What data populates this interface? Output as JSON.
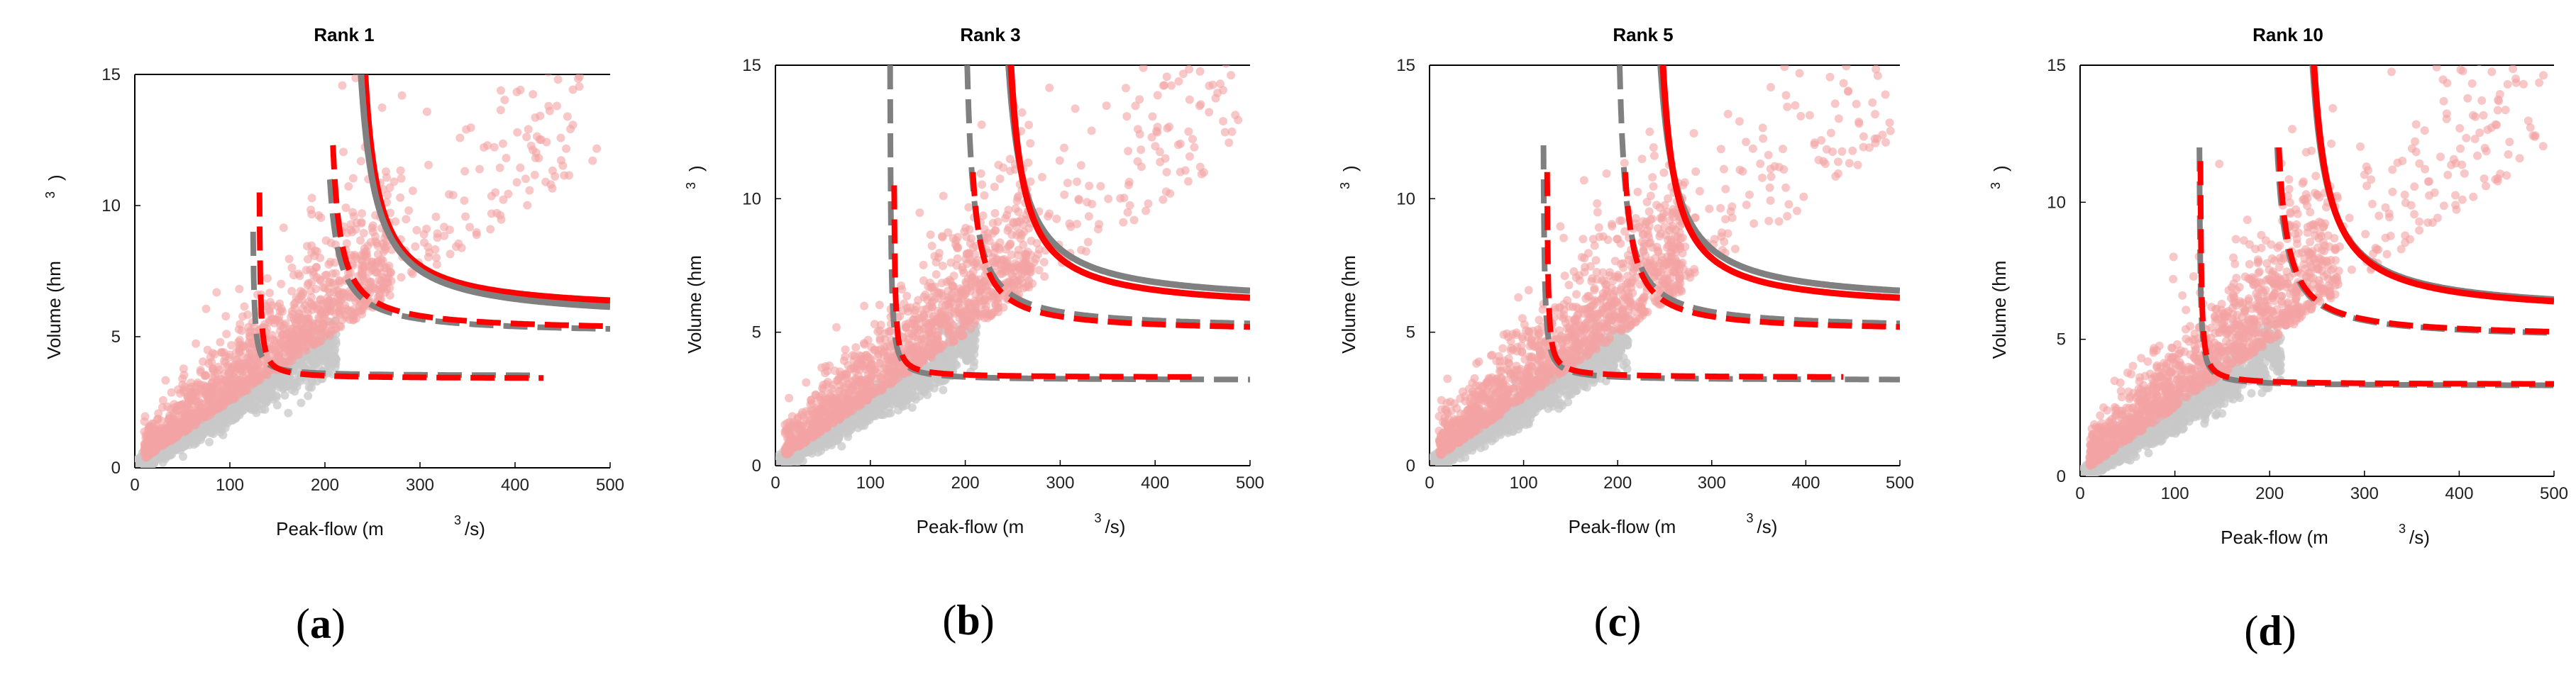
{
  "figure": {
    "x_label_pre": "Peak-flow (m",
    "x_label_sup": "3",
    "x_label_post": "/s)",
    "y_label_pre": "Volume (hm",
    "y_label_sup": "3",
    "y_label_post": ")"
  },
  "colors": {
    "scatter_pink": "#f4a3a3",
    "scatter_grey": "#c8c8c8",
    "curve_red": "#ff0000",
    "curve_grey": "#808080"
  },
  "chart_data": [
    {
      "id": "a",
      "type": "scatter",
      "title": "Rank 1",
      "panel_label": "a",
      "xlim": [
        0,
        500
      ],
      "ylim": [
        0,
        15
      ],
      "xticks": [
        "0",
        "100",
        "200",
        "300",
        "400",
        "500"
      ],
      "yticks": [
        "0",
        "5",
        "10",
        "15"
      ],
      "series": [
        {
          "name": "red solid (outer)",
          "color": "#ff0000",
          "style": "solid",
          "x0": 228,
          "y0": 5.9,
          "k": 130,
          "ymax": 15
        },
        {
          "name": "grey solid (outer)",
          "color": "#808080",
          "style": "solid",
          "x0": 222,
          "y0": 5.6,
          "k": 150,
          "ymax": 15
        },
        {
          "name": "grey dash (middle)",
          "color": "#808080",
          "style": "dash",
          "x0": 195,
          "y0": 5.1,
          "k": 60,
          "ymax": 11
        },
        {
          "name": "red dash (middle)",
          "color": "#ff0000",
          "style": "dash",
          "x0": 200,
          "y0": 5.2,
          "k": 60,
          "ymax": 12.3
        },
        {
          "name": "grey dash (inner)",
          "color": "#808080",
          "style": "dash",
          "x0": 123,
          "y0": 3.5,
          "k": 8,
          "ymax": 9,
          "xmax": 420
        },
        {
          "name": "red dash (inner)",
          "color": "#ff0000",
          "style": "dash",
          "x0": 130,
          "y0": 3.4,
          "k": 8,
          "ymax": 10.5,
          "xmax": 430
        }
      ]
    },
    {
      "id": "b",
      "type": "scatter",
      "title": "Rank 3",
      "panel_label": "b",
      "xlim": [
        0,
        500
      ],
      "ylim": [
        0,
        15
      ],
      "xticks": [
        "0",
        "100",
        "200",
        "300",
        "400",
        "500"
      ],
      "yticks": [
        "0",
        "5",
        "10",
        "15"
      ],
      "series": [
        {
          "name": "grey solid (outer)",
          "color": "#808080",
          "style": "solid",
          "x0": 229,
          "y0": 6.0,
          "k": 150,
          "ymax": 15
        },
        {
          "name": "red solid (outer)",
          "color": "#ff0000",
          "style": "solid",
          "x0": 234,
          "y0": 5.8,
          "k": 130,
          "ymax": 15
        },
        {
          "name": "grey dash (middle)",
          "color": "#808080",
          "style": "dash",
          "x0": 195,
          "y0": 5.1,
          "k": 70,
          "ymax": 15
        },
        {
          "name": "red dash (middle)",
          "color": "#ff0000",
          "style": "dash",
          "x0": 198,
          "y0": 5.0,
          "k": 60,
          "ymax": 11
        },
        {
          "name": "grey dash (inner)",
          "color": "#808080",
          "style": "dash",
          "x0": 120,
          "y0": 3.2,
          "k": 10,
          "ymax": 15
        },
        {
          "name": "red dash (inner)",
          "color": "#ff0000",
          "style": "dash",
          "x0": 124,
          "y0": 3.3,
          "k": 8,
          "ymax": 10.5,
          "xmax": 440
        }
      ]
    },
    {
      "id": "c",
      "type": "scatter",
      "title": "Rank 5",
      "panel_label": "c",
      "xlim": [
        0,
        500
      ],
      "ylim": [
        0,
        15
      ],
      "xticks": [
        "0",
        "100",
        "200",
        "300",
        "400",
        "500"
      ],
      "yticks": [
        "0",
        "5",
        "10",
        "15"
      ],
      "series": [
        {
          "name": "grey solid (outer)",
          "color": "#808080",
          "style": "solid",
          "x0": 229,
          "y0": 6.0,
          "k": 150,
          "ymax": 15
        },
        {
          "name": "red solid (outer)",
          "color": "#ff0000",
          "style": "solid",
          "x0": 234,
          "y0": 5.8,
          "k": 130,
          "ymax": 15
        },
        {
          "name": "grey dash (middle)",
          "color": "#808080",
          "style": "dash",
          "x0": 195,
          "y0": 5.1,
          "k": 70,
          "ymax": 15
        },
        {
          "name": "red dash (middle)",
          "color": "#ff0000",
          "style": "dash",
          "x0": 198,
          "y0": 5.0,
          "k": 60,
          "ymax": 11
        },
        {
          "name": "grey dash (inner)",
          "color": "#808080",
          "style": "dash",
          "x0": 120,
          "y0": 3.2,
          "k": 10,
          "ymax": 12
        },
        {
          "name": "red dash (inner)",
          "color": "#ff0000",
          "style": "dash",
          "x0": 124,
          "y0": 3.3,
          "k": 8,
          "ymax": 11,
          "xmax": 440
        }
      ]
    },
    {
      "id": "d",
      "type": "scatter",
      "title": "Rank 10",
      "panel_label": "d",
      "xlim": [
        0,
        500
      ],
      "ylim": [
        0,
        15
      ],
      "xticks": [
        "0",
        "100",
        "200",
        "300",
        "400",
        "500"
      ],
      "yticks": [
        "0",
        "5",
        "10",
        "15"
      ],
      "series": [
        {
          "name": "grey solid (outer)",
          "color": "#808080",
          "style": "solid",
          "x0": 229,
          "y0": 5.9,
          "k": 150,
          "ymax": 15
        },
        {
          "name": "red solid (outer)",
          "color": "#ff0000",
          "style": "solid",
          "x0": 231,
          "y0": 5.85,
          "k": 145,
          "ymax": 15
        },
        {
          "name": "grey dash (middle)",
          "color": "#808080",
          "style": "dash",
          "x0": 198,
          "y0": 5.0,
          "k": 70,
          "ymax": 12
        },
        {
          "name": "red dash (middle)",
          "color": "#ff0000",
          "style": "dash",
          "x0": 200,
          "y0": 5.05,
          "k": 68,
          "ymax": 12
        },
        {
          "name": "grey dash (inner)",
          "color": "#808080",
          "style": "dash",
          "x0": 125,
          "y0": 3.3,
          "k": 8,
          "ymax": 12
        },
        {
          "name": "red dash (inner)",
          "color": "#ff0000",
          "style": "dash",
          "x0": 126,
          "y0": 3.35,
          "k": 8,
          "ymax": 11.5
        }
      ]
    }
  ]
}
